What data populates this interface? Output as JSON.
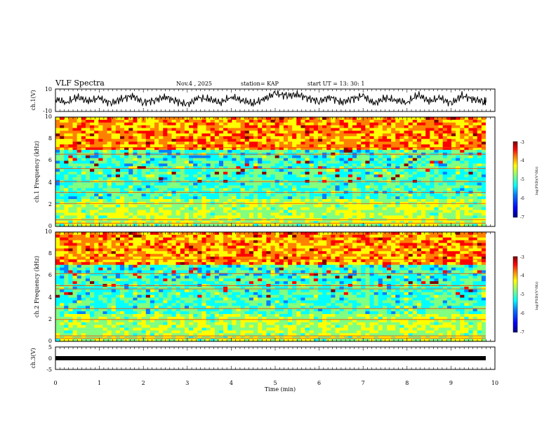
{
  "header": {
    "title": "VLF Spectra",
    "date": "Nov.4 , 2025",
    "station": "station= KAP",
    "start": "start UT = 13: 30: 1"
  },
  "colors": {
    "spectrum_scale": [
      "#00007f",
      "#0000ff",
      "#0080ff",
      "#00ffff",
      "#80ff80",
      "#ffff00",
      "#ff8000",
      "#ff0000",
      "#7f0000"
    ]
  },
  "chart_data": [
    {
      "type": "line",
      "panel": "ch1-waveform",
      "ylabel": "ch.1(V)",
      "ylim": [
        -10,
        10
      ],
      "yticks": [
        "10",
        "-10"
      ],
      "x": [
        0,
        0.25,
        0.5,
        0.75,
        1,
        1.25,
        1.5,
        1.75,
        2,
        2.25,
        2.5,
        2.75,
        3,
        3.25,
        3.5,
        3.75,
        4,
        4.25,
        4.5,
        4.75,
        5,
        5.25,
        5.5,
        5.75,
        6,
        6.25,
        6.5,
        6.75,
        7,
        7.25,
        7.5,
        7.75,
        8,
        8.25,
        8.5,
        8.75,
        9,
        9.25,
        9.5,
        9.75
      ],
      "values": [
        1,
        -2,
        3,
        -1,
        2,
        -3,
        1,
        4,
        -2,
        0,
        3,
        -1,
        -4,
        2,
        1,
        -2,
        3,
        0,
        -3,
        1,
        6,
        4,
        5,
        2,
        -1,
        3,
        -2,
        1,
        4,
        -3,
        2,
        0,
        -2,
        5,
        -1,
        2,
        -3,
        4,
        1,
        -1
      ],
      "xlim": [
        0,
        10
      ]
    },
    {
      "type": "heatmap",
      "panel": "ch1-spectrogram",
      "ylabel": "ch.1 Frequency (kHz)",
      "ylim": [
        0,
        10
      ],
      "yticks": [
        "0",
        "2",
        "4",
        "6",
        "8",
        "10"
      ],
      "xlim": [
        0,
        10
      ],
      "colorbar": {
        "label": "log(PSD)(V²/Hz)",
        "range": [
          -7,
          -3
        ],
        "ticks": [
          "-3",
          "-4",
          "-5",
          "-6",
          "-7"
        ]
      }
    },
    {
      "type": "heatmap",
      "panel": "ch2-spectrogram",
      "ylabel": "ch.2 Frequency (kHz)",
      "ylim": [
        0,
        10
      ],
      "yticks": [
        "0",
        "2",
        "4",
        "6",
        "8",
        "10"
      ],
      "xlim": [
        0,
        10
      ],
      "colorbar": {
        "label": "log(PSD)(V²/Hz)",
        "range": [
          -7,
          -3
        ],
        "ticks": [
          "-3",
          "-4",
          "-5",
          "-6",
          "-7"
        ]
      }
    },
    {
      "type": "line",
      "panel": "ch3-waveform",
      "ylabel": "ch.3(V)",
      "ylim": [
        -5,
        5
      ],
      "yticks": [
        "5",
        "0",
        "-5"
      ],
      "x": [
        0,
        9.8
      ],
      "values": [
        0,
        0
      ],
      "xlim": [
        0,
        10
      ]
    }
  ],
  "xaxis": {
    "label": "Time (min)",
    "ticks": [
      "0",
      "1",
      "2",
      "3",
      "4",
      "5",
      "6",
      "7",
      "8",
      "9",
      "10"
    ]
  }
}
